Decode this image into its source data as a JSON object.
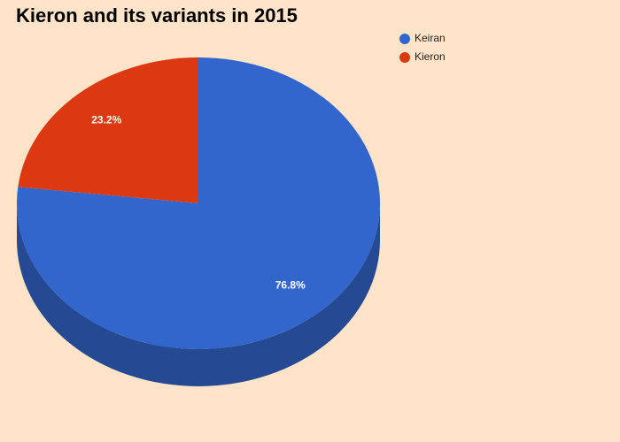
{
  "chart_data": {
    "type": "pie",
    "title": "Kieron and its variants in 2015",
    "categories": [
      "Keiran",
      "Kieron"
    ],
    "values": [
      76.8,
      23.2
    ],
    "value_labels": [
      "76.8%",
      "23.2%"
    ],
    "colors": [
      "#3366cc",
      "#dc3912"
    ],
    "legend": "top-right",
    "three_d": true
  }
}
